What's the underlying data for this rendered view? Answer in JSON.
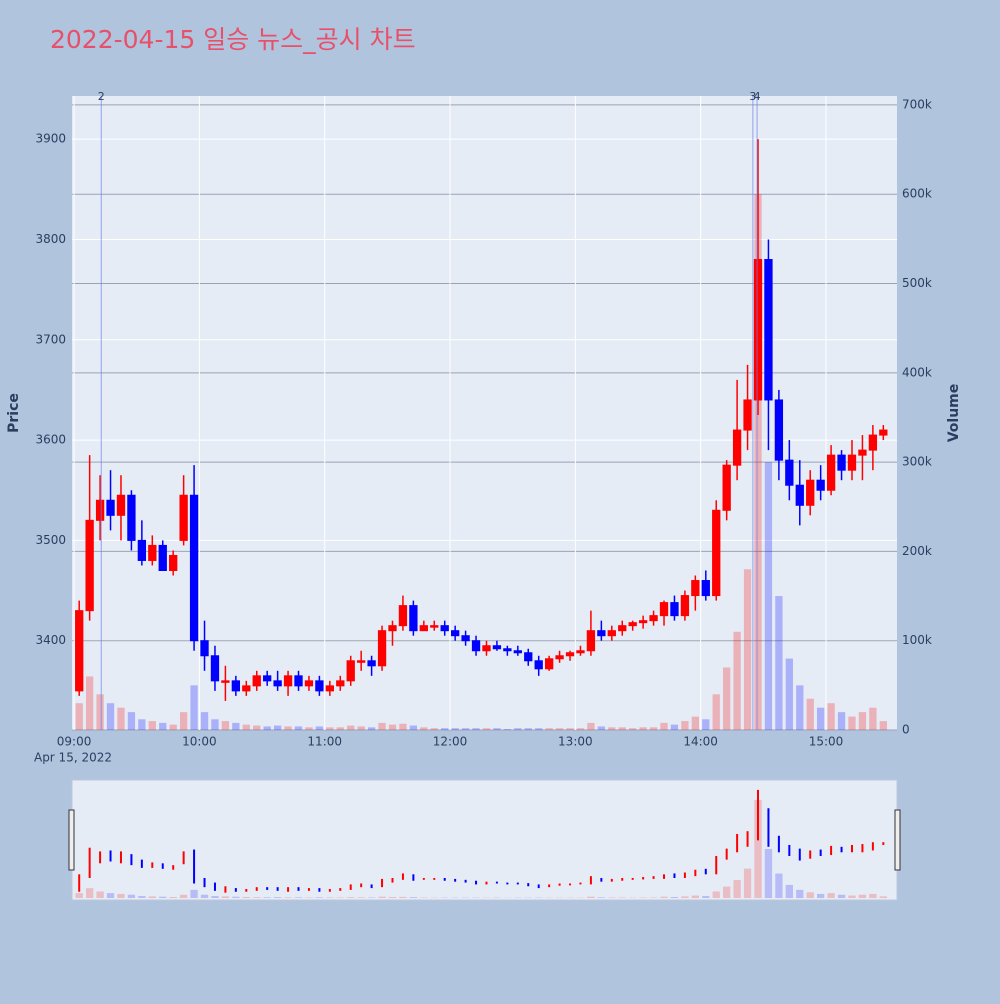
{
  "chart_data": {
    "type": "candlestick",
    "title": "2022-04-15 일승 뉴스_공시 차트",
    "y_title": "Price",
    "y2_title": "Volume",
    "x_date_label": "Apr 15, 2022",
    "increasing_color": "#ff0000",
    "decreasing_color": "#0000ff",
    "x": [
      "09:00",
      "09:05",
      "09:10",
      "09:15",
      "09:20",
      "09:25",
      "09:30",
      "09:35",
      "09:40",
      "09:45",
      "09:50",
      "09:55",
      "10:00",
      "10:05",
      "10:10",
      "10:15",
      "10:20",
      "10:25",
      "10:30",
      "10:35",
      "10:40",
      "10:45",
      "10:50",
      "10:55",
      "11:00",
      "11:05",
      "11:10",
      "11:15",
      "11:20",
      "11:25",
      "11:30",
      "11:35",
      "11:40",
      "11:45",
      "11:50",
      "11:55",
      "12:00",
      "12:05",
      "12:10",
      "12:15",
      "12:20",
      "12:25",
      "12:30",
      "12:35",
      "12:40",
      "12:45",
      "12:50",
      "12:55",
      "13:00",
      "13:05",
      "13:10",
      "13:15",
      "13:20",
      "13:25",
      "13:30",
      "13:35",
      "13:40",
      "13:45",
      "13:50",
      "13:55",
      "14:00",
      "14:05",
      "14:10",
      "14:15",
      "14:20",
      "14:25",
      "14:30",
      "14:35",
      "14:40",
      "14:45",
      "14:50",
      "14:55",
      "15:00",
      "15:05",
      "15:10",
      "15:15",
      "15:20",
      "15:25"
    ],
    "open": [
      3350,
      3430,
      3520,
      3540,
      3525,
      3545,
      3500,
      3480,
      3495,
      3470,
      3500,
      3545,
      3400,
      3385,
      3360,
      3360,
      3350,
      3355,
      3365,
      3360,
      3355,
      3365,
      3355,
      3360,
      3350,
      3355,
      3360,
      3380,
      3380,
      3375,
      3410,
      3415,
      3435,
      3410,
      3415,
      3415,
      3410,
      3405,
      3400,
      3390,
      3395,
      3392,
      3390,
      3388,
      3380,
      3372,
      3382,
      3385,
      3388,
      3390,
      3410,
      3405,
      3410,
      3415,
      3418,
      3420,
      3425,
      3438,
      3425,
      3445,
      3460,
      3445,
      3530,
      3575,
      3610,
      3640,
      3780,
      3640,
      3580,
      3555,
      3535,
      3560,
      3550,
      3585,
      3570,
      3585,
      3590,
      3605
    ],
    "high": [
      3440,
      3585,
      3565,
      3570,
      3565,
      3550,
      3520,
      3505,
      3500,
      3490,
      3565,
      3575,
      3420,
      3395,
      3375,
      3365,
      3360,
      3370,
      3370,
      3370,
      3370,
      3370,
      3365,
      3365,
      3360,
      3365,
      3385,
      3390,
      3385,
      3415,
      3420,
      3445,
      3440,
      3420,
      3420,
      3420,
      3415,
      3410,
      3405,
      3400,
      3400,
      3395,
      3395,
      3392,
      3385,
      3385,
      3390,
      3390,
      3395,
      3430,
      3420,
      3415,
      3420,
      3420,
      3425,
      3430,
      3440,
      3445,
      3450,
      3465,
      3470,
      3540,
      3580,
      3660,
      3675,
      3900,
      3800,
      3650,
      3600,
      3580,
      3570,
      3575,
      3595,
      3590,
      3600,
      3605,
      3615,
      3615
    ],
    "low": [
      3345,
      3420,
      3500,
      3510,
      3500,
      3490,
      3475,
      3475,
      3470,
      3465,
      3495,
      3390,
      3370,
      3350,
      3340,
      3345,
      3345,
      3350,
      3355,
      3350,
      3345,
      3350,
      3350,
      3345,
      3345,
      3350,
      3355,
      3370,
      3365,
      3370,
      3395,
      3410,
      3405,
      3410,
      3410,
      3405,
      3400,
      3395,
      3385,
      3385,
      3390,
      3385,
      3385,
      3375,
      3365,
      3370,
      3378,
      3380,
      3385,
      3385,
      3400,
      3400,
      3405,
      3410,
      3412,
      3415,
      3415,
      3420,
      3420,
      3430,
      3440,
      3440,
      3520,
      3560,
      3590,
      3625,
      3590,
      3560,
      3540,
      3515,
      3525,
      3540,
      3545,
      3560,
      3560,
      3560,
      3570,
      3600
    ],
    "close": [
      3430,
      3520,
      3540,
      3525,
      3545,
      3500,
      3480,
      3495,
      3470,
      3485,
      3545,
      3400,
      3385,
      3360,
      3360,
      3350,
      3355,
      3365,
      3360,
      3355,
      3365,
      3355,
      3360,
      3350,
      3355,
      3360,
      3380,
      3380,
      3375,
      3410,
      3415,
      3435,
      3410,
      3415,
      3415,
      3410,
      3405,
      3400,
      3390,
      3395,
      3392,
      3390,
      3388,
      3380,
      3372,
      3382,
      3385,
      3388,
      3390,
      3410,
      3405,
      3410,
      3415,
      3418,
      3420,
      3425,
      3438,
      3425,
      3445,
      3460,
      3445,
      3530,
      3575,
      3610,
      3640,
      3780,
      3640,
      3580,
      3555,
      3535,
      3560,
      3550,
      3585,
      3570,
      3585,
      3590,
      3605,
      3610
    ],
    "volume": [
      30000,
      60000,
      40000,
      30000,
      25000,
      20000,
      12000,
      10000,
      8000,
      6000,
      20000,
      50000,
      20000,
      12000,
      10000,
      8000,
      6000,
      5000,
      4000,
      5000,
      4000,
      4000,
      3000,
      4000,
      3000,
      3000,
      5000,
      4000,
      3000,
      8000,
      6000,
      7000,
      5000,
      3000,
      2000,
      2000,
      2000,
      2000,
      2000,
      2000,
      2000,
      1000,
      2000,
      2000,
      2000,
      2000,
      2000,
      2000,
      2000,
      8000,
      4000,
      3000,
      3000,
      2000,
      3000,
      3000,
      8000,
      6000,
      10000,
      15000,
      12000,
      40000,
      70000,
      110000,
      180000,
      600000,
      300000,
      150000,
      80000,
      50000,
      35000,
      25000,
      30000,
      20000,
      15000,
      20000,
      25000,
      10000
    ],
    "xlim": [
      "08:59",
      "15:34"
    ],
    "xticks": [
      "09:00",
      "10:00",
      "11:00",
      "12:00",
      "13:00",
      "14:00",
      "15:00"
    ],
    "ylim": [
      3311,
      3943
    ],
    "yticks": [
      3400,
      3500,
      3600,
      3700,
      3800,
      3900
    ],
    "y2lim": [
      0,
      710000
    ],
    "y2ticks": [
      0,
      {
        "value": 100000,
        "label": "100k"
      },
      {
        "value": 200000,
        "label": "200k"
      },
      {
        "value": 300000,
        "label": "300k"
      },
      {
        "value": 400000,
        "label": "400k"
      },
      {
        "value": 500000,
        "label": "500k"
      },
      {
        "value": 600000,
        "label": "600k"
      },
      {
        "value": 700000,
        "label": "700k"
      }
    ],
    "annotations": [
      {
        "x": "09:13",
        "text": "2"
      },
      {
        "x": "14:25",
        "text": "3"
      },
      {
        "x": "14:27",
        "text": "4"
      }
    ],
    "grid": true,
    "rangeslider": true
  }
}
